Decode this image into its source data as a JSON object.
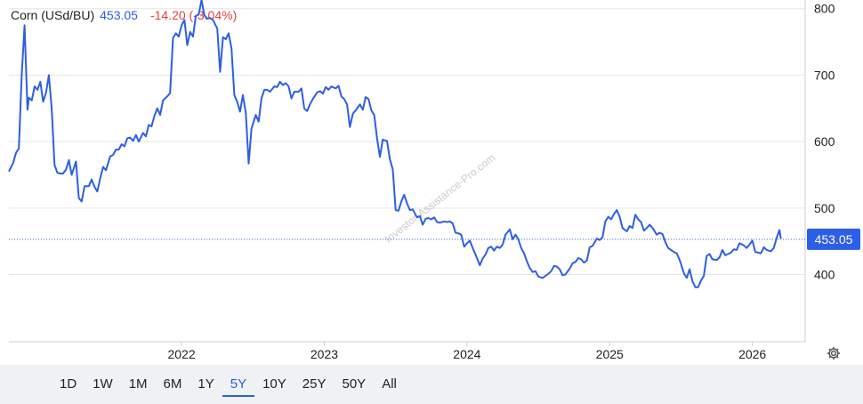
{
  "header": {
    "name": "Corn (USd/BU)",
    "price": "453.05",
    "change": "-14.20 (-3.04%)"
  },
  "ranges": [
    "1D",
    "1W",
    "1M",
    "6M",
    "1Y",
    "5Y",
    "10Y",
    "25Y",
    "50Y",
    "All"
  ],
  "active_range": "5Y",
  "watermark": "Investor-Assistance-Pro.com",
  "colors": {
    "line": "#2c5ee8",
    "down": "#e0443e",
    "grid": "#e6e6e6",
    "badge": "#2c5ee8"
  },
  "icons": {
    "settings": "gear-icon"
  },
  "chart_data": {
    "type": "line",
    "title": "",
    "xlabel": "",
    "ylabel": "",
    "x_ticks": [
      {
        "label": "2022",
        "t": 2022.0
      },
      {
        "label": "2023",
        "t": 2023.0
      },
      {
        "label": "2024",
        "t": 2024.0
      },
      {
        "label": "2025",
        "t": 2025.0
      },
      {
        "label": "2026",
        "t": 2026.0
      }
    ],
    "y_ticks": [
      400,
      500,
      600,
      700,
      800
    ],
    "xlim": [
      2020.79,
      2026.37
    ],
    "ylim": [
      299,
      813
    ],
    "y_axis_position": "right",
    "grid": "horizontal",
    "last_value": 453.05,
    "last_value_label": "453.05",
    "series": [
      {
        "x": [
          2020.79,
          2020.82,
          2020.84,
          2020.86,
          2020.88,
          2020.9,
          2020.92,
          2020.93,
          2020.95,
          2020.97,
          2020.99,
          2021.01,
          2021.03,
          2021.05,
          2021.07,
          2021.09,
          2021.11,
          2021.13,
          2021.15,
          2021.17,
          2021.19,
          2021.21,
          2021.23,
          2021.26,
          2021.28,
          2021.3,
          2021.32,
          2021.35,
          2021.37,
          2021.39,
          2021.41,
          2021.43,
          2021.45,
          2021.47,
          2021.5,
          2021.52,
          2021.54,
          2021.56,
          2021.58,
          2021.6,
          2021.62,
          2021.64,
          2021.66,
          2021.68,
          2021.7,
          2021.73,
          2021.75,
          2021.77,
          2021.79,
          2021.81,
          2021.83,
          2021.85,
          2021.87,
          2021.9,
          2021.92,
          2021.94,
          2021.96,
          2021.98,
          2022.0,
          2022.02,
          2022.04,
          2022.06,
          2022.08,
          2022.1,
          2022.12,
          2022.14,
          2022.16,
          2022.18,
          2022.2,
          2022.22,
          2022.25,
          2022.27,
          2022.29,
          2022.31,
          2022.33,
          2022.35,
          2022.37,
          2022.39,
          2022.41,
          2022.43,
          2022.45,
          2022.47,
          2022.49,
          2022.52,
          2022.54,
          2022.56,
          2022.58,
          2022.6,
          2022.62,
          2022.65,
          2022.67,
          2022.69,
          2022.71,
          2022.73,
          2022.75,
          2022.77,
          2022.79,
          2022.82,
          2022.84,
          2022.86,
          2022.88,
          2022.9,
          2022.92,
          2022.95,
          2022.97,
          2022.99,
          2023.01,
          2023.03,
          2023.05,
          2023.08,
          2023.1,
          2023.12,
          2023.14,
          2023.16,
          2023.18,
          2023.2,
          2023.22,
          2023.25,
          2023.27,
          2023.29,
          2023.31,
          2023.33,
          2023.35,
          2023.37,
          2023.39,
          2023.41,
          2023.44,
          2023.46,
          2023.48,
          2023.5,
          2023.52,
          2023.54,
          2023.56,
          2023.58,
          2023.6,
          2023.62,
          2023.65,
          2023.67,
          2023.69,
          2023.71,
          2023.73,
          2023.75,
          2023.77,
          2023.79,
          2023.81,
          2023.84,
          2023.86,
          2023.88,
          2023.9,
          2023.92,
          2023.94,
          2023.96,
          2023.98,
          2024.0,
          2024.02,
          2024.04,
          2024.06,
          2024.09,
          2024.11,
          2024.13,
          2024.15,
          2024.17,
          2024.19,
          2024.21,
          2024.23,
          2024.25,
          2024.27,
          2024.3,
          2024.32,
          2024.34,
          2024.36,
          2024.38,
          2024.4,
          2024.42,
          2024.44,
          2024.46,
          2024.48,
          2024.5,
          2024.53,
          2024.55,
          2024.57,
          2024.59,
          2024.61,
          2024.63,
          2024.65,
          2024.67,
          2024.69,
          2024.72,
          2024.74,
          2024.76,
          2024.78,
          2024.8,
          2024.82,
          2024.84,
          2024.86,
          2024.88,
          2024.91,
          2024.93,
          2024.95,
          2024.97,
          2024.99,
          2025.01,
          2025.03,
          2025.05,
          2025.07,
          2025.09,
          2025.12,
          2025.14,
          2025.16,
          2025.18,
          2025.2,
          2025.22,
          2025.24,
          2025.26,
          2025.28,
          2025.3,
          2025.33,
          2025.35,
          2025.37,
          2025.39,
          2025.41,
          2025.43,
          2025.45,
          2025.47,
          2025.49,
          2025.52,
          2025.54,
          2025.56,
          2025.58,
          2025.6,
          2025.62,
          2025.64,
          2025.66,
          2025.68,
          2025.7,
          2025.72,
          2025.75,
          2025.77,
          2025.79,
          2025.81,
          2025.83,
          2025.85,
          2025.87,
          2025.89,
          2025.91,
          2025.94,
          2025.96,
          2025.98,
          2026.0,
          2026.02,
          2026.04,
          2026.06,
          2026.08,
          2026.1,
          2026.13,
          2026.15,
          2026.17,
          2026.19,
          2026.2
        ],
        "y": [
          555,
          568,
          583,
          590,
          700,
          775,
          648,
          666,
          662,
          683,
          678,
          690,
          660,
          673,
          700,
          650,
          565,
          553,
          552,
          552,
          558,
          572,
          550,
          570,
          515,
          510,
          533,
          533,
          543,
          532,
          525,
          545,
          562,
          557,
          578,
          580,
          588,
          588,
          596,
          593,
          605,
          606,
          601,
          610,
          600,
          613,
          608,
          625,
          623,
          639,
          650,
          640,
          662,
          668,
          673,
          756,
          763,
          758,
          775,
          783,
          745,
          765,
          758,
          789,
          791,
          813,
          790,
          785,
          786,
          783,
          770,
          705,
          757,
          754,
          763,
          740,
          670,
          660,
          645,
          670,
          643,
          567,
          620,
          640,
          630,
          665,
          678,
          678,
          675,
          683,
          682,
          690,
          685,
          688,
          683,
          665,
          675,
          675,
          680,
          650,
          646,
          656,
          664,
          674,
          676,
          672,
          682,
          678,
          683,
          680,
          684,
          668,
          664,
          656,
          622,
          642,
          647,
          656,
          648,
          667,
          664,
          647,
          640,
          605,
          577,
          603,
          601,
          573,
          558,
          497,
          496,
          510,
          520,
          507,
          497,
          498,
          486,
          488,
          475,
          484,
          485,
          483,
          486,
          479,
          478,
          480,
          479,
          480,
          477,
          463,
          462,
          460,
          442,
          447,
          451,
          440,
          430,
          414,
          424,
          430,
          440,
          442,
          436,
          442,
          440,
          445,
          460,
          468,
          453,
          460,
          453,
          440,
          432,
          420,
          410,
          404,
          405,
          397,
          395,
          398,
          401,
          405,
          413,
          412,
          408,
          399,
          400,
          409,
          417,
          419,
          425,
          423,
          418,
          421,
          441,
          443,
          454,
          452,
          456,
          480,
          487,
          483,
          491,
          497,
          487,
          470,
          465,
          473,
          470,
          490,
          483,
          479,
          466,
          470,
          475,
          470,
          460,
          463,
          461,
          449,
          440,
          437,
          434,
          432,
          422,
          402,
          395,
          408,
          390,
          381,
          381,
          391,
          398,
          428,
          431,
          423,
          422,
          426,
          437,
          429,
          431,
          433,
          438,
          437,
          447,
          444,
          440,
          445,
          451,
          434,
          433,
          432,
          441,
          437,
          435,
          440,
          455,
          467,
          454
        ]
      }
    ]
  }
}
